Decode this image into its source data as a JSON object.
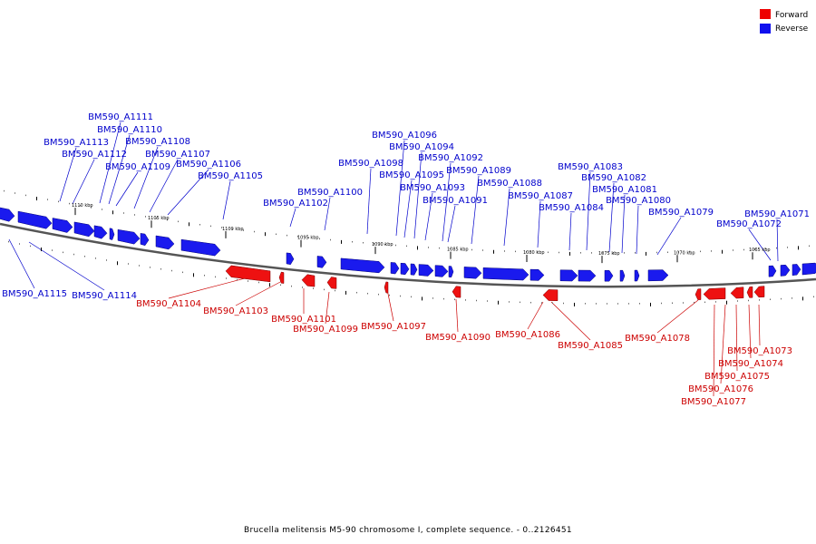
{
  "caption": "Brucella melitensis M5-90 chromosome I, complete sequence. - 0..2126451",
  "legend": [
    {
      "label": "Forward",
      "color": "#ee0000"
    },
    {
      "label": "Reverse",
      "color": "#1010ee"
    }
  ],
  "ticks": [
    "1110 kbp",
    "1105 kbp",
    "1100 kbp",
    "1095 kbp",
    "1090 kbp",
    "1085 kbp",
    "1080 kbp",
    "1075 kbp",
    "1070 kbp",
    "1065 kbp"
  ],
  "genes_reverse": [
    "BM590_A1115",
    "BM590_A1114",
    "BM590_A1113",
    "BM590_A1112",
    "BM590_A1111",
    "BM590_A1110",
    "BM590_A1109",
    "BM590_A1108",
    "BM590_A1107",
    "BM590_A1106",
    "BM590_A1105",
    "BM590_A1102",
    "BM590_A1100",
    "BM590_A1098",
    "BM590_A1096",
    "BM590_A1095",
    "BM590_A1094",
    "BM590_A1093",
    "BM590_A1092",
    "BM590_A1091",
    "BM590_A1089",
    "BM590_A1088",
    "BM590_A1087",
    "BM590_A1084",
    "BM590_A1083",
    "BM590_A1082",
    "BM590_A1081",
    "BM590_A1080",
    "BM590_A1079",
    "BM590_A1072",
    "BM590_A1071"
  ],
  "genes_forward": [
    "BM590_A1104",
    "BM590_A1103",
    "BM590_A1101",
    "BM590_A1099",
    "BM590_A1097",
    "BM590_A1090",
    "BM590_A1086",
    "BM590_A1085",
    "BM590_A1078",
    "BM590_A1077",
    "BM590_A1076",
    "BM590_A1075",
    "BM590_A1074",
    "BM590_A1073"
  ]
}
